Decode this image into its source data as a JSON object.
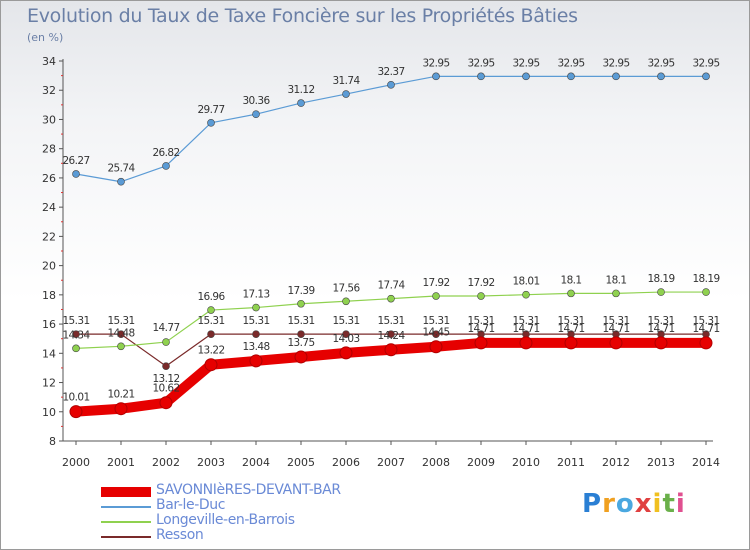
{
  "chart_data": {
    "type": "line",
    "title": "Evolution du Taux de Taxe Foncière sur les Propriétés Bâties",
    "ylabel": "(en %)",
    "xlabel": "",
    "ylim": [
      8,
      34
    ],
    "y_ticks": [
      8,
      10,
      12,
      14,
      16,
      18,
      20,
      22,
      24,
      26,
      28,
      30,
      32,
      34
    ],
    "grid": false,
    "legend_position": "bottom-left",
    "x": [
      "2000",
      "2001",
      "2002",
      "2003",
      "2004",
      "2005",
      "2006",
      "2007",
      "2008",
      "2009",
      "2010",
      "2011",
      "2012",
      "2013",
      "2014"
    ],
    "series": [
      {
        "name": "SAVONNIèRES-DEVANT-BAR",
        "color": "#e60000",
        "values": [
          10.01,
          10.21,
          10.62,
          13.22,
          13.48,
          13.75,
          14.03,
          14.24,
          14.45,
          14.71,
          14.71,
          14.71,
          14.71,
          14.71,
          14.71
        ],
        "labels": [
          "10.01",
          "10.21",
          "10.62",
          "13.22",
          "13.48",
          "13.75",
          "14.03",
          "14.24",
          "14.45",
          "14.71",
          "14.71",
          "14.71",
          "14.71",
          "14.71",
          "14.71"
        ]
      },
      {
        "name": "Bar-le-Duc",
        "color": "#5b9bd5",
        "values": [
          26.27,
          25.74,
          26.82,
          29.77,
          30.36,
          31.12,
          31.74,
          32.37,
          32.95,
          32.95,
          32.95,
          32.95,
          32.95,
          32.95,
          32.95
        ],
        "labels": [
          "26.27",
          "25.74",
          "26.82",
          "29.77",
          "30.36",
          "31.12",
          "31.74",
          "32.37",
          "32.95",
          "32.95",
          "32.95",
          "32.95",
          "32.95",
          "32.95",
          "32.95"
        ]
      },
      {
        "name": "Longeville-en-Barrois",
        "color": "#8fd14f",
        "values": [
          14.34,
          14.48,
          14.77,
          16.96,
          17.13,
          17.39,
          17.56,
          17.74,
          17.92,
          17.92,
          18.01,
          18.1,
          18.1,
          18.19,
          18.19
        ],
        "labels": [
          "14.34",
          "14.48",
          "14.77",
          "16.96",
          "17.13",
          "17.39",
          "17.56",
          "17.74",
          "17.92",
          "17.92",
          "18.01",
          "18.1",
          "18.1",
          "18.19",
          "18.19"
        ]
      },
      {
        "name": "Resson",
        "color": "#7a2a2a",
        "values": [
          15.31,
          15.31,
          13.12,
          15.31,
          15.31,
          15.31,
          15.31,
          15.31,
          15.31,
          15.31,
          15.31,
          15.31,
          15.31,
          15.31,
          15.31
        ],
        "labels": [
          "15.31",
          "15.31",
          "13.12",
          "15.31",
          "15.31",
          "15.31",
          "15.31",
          "15.31",
          "15.31",
          "15.31",
          "15.31",
          "15.31",
          "15.31",
          "15.31",
          "15.31"
        ]
      }
    ]
  },
  "brand": {
    "letters": [
      "P",
      "r",
      "o",
      "x",
      "i",
      "t",
      "i"
    ],
    "colors": [
      "#2a7fd4",
      "#f0a020",
      "#4aa8e0",
      "#e04040",
      "#f0c020",
      "#6ab04a",
      "#e05090"
    ]
  }
}
